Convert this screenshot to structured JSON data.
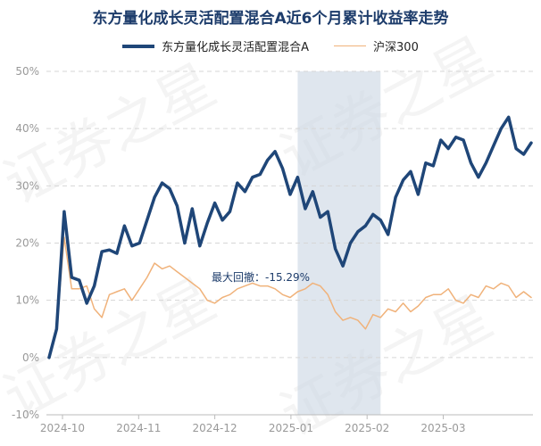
{
  "chart_data": {
    "type": "line",
    "title": "东方量化成长灵活配置混合A近6个月累计收益率走势",
    "xlabel": "",
    "ylabel": "",
    "ylim": [
      -10,
      50
    ],
    "y_ticks": [
      "50%",
      "40%",
      "30%",
      "20%",
      "10%",
      "0%",
      "-10%"
    ],
    "x_ticks": [
      "2024-10",
      "2024-11",
      "2024-12",
      "2025-01",
      "2025-02",
      "2025-03"
    ],
    "grid": true,
    "legend": "top-center",
    "annotation": {
      "text": "最大回撤：-15.29%",
      "drawdown_start_index": 33,
      "drawdown_end_index": 44
    },
    "watermark": "证券之星",
    "colors": {
      "fund": "#1f4678",
      "index": "#f0b27a",
      "drawdown_band": "#c9d6e3",
      "title": "#1d3c6b"
    },
    "series": [
      {
        "name": "东方量化成长灵活配置混合A",
        "values": [
          0,
          5,
          25.5,
          14,
          13.5,
          9.5,
          12.5,
          18.5,
          18.8,
          18.2,
          23,
          19.5,
          20,
          24,
          28,
          30.5,
          29.5,
          26.5,
          20,
          26,
          19.5,
          23.5,
          27,
          24,
          25.5,
          30.5,
          29,
          31.5,
          32,
          34.5,
          36,
          33,
          28.5,
          31.5,
          26,
          29,
          24.5,
          25.5,
          19,
          16,
          20,
          22,
          23,
          25,
          24,
          21.5,
          28,
          31,
          32.5,
          28.5,
          34,
          33.5,
          38,
          36.5,
          38.5,
          38,
          34,
          31.5,
          34,
          37,
          40,
          42,
          36.5,
          35.5,
          37.5
        ]
      },
      {
        "name": "沪深300",
        "values": [
          0,
          5,
          21,
          12,
          12,
          12.5,
          8.5,
          7,
          11,
          11.5,
          12,
          10,
          12,
          14,
          16.5,
          15.5,
          16,
          15,
          14,
          13,
          12,
          10,
          9.5,
          10.5,
          11,
          12,
          12.5,
          13,
          12.5,
          12.5,
          12,
          11,
          10.5,
          11.5,
          12,
          13,
          12.5,
          11,
          8,
          6.5,
          7,
          6.5,
          5,
          7.5,
          7,
          8.5,
          8,
          9.5,
          8,
          9,
          10.5,
          11,
          11,
          12,
          10,
          9.5,
          11,
          10.5,
          12.5,
          12,
          13,
          12.5,
          10.5,
          11.5,
          10.5
        ]
      }
    ]
  }
}
